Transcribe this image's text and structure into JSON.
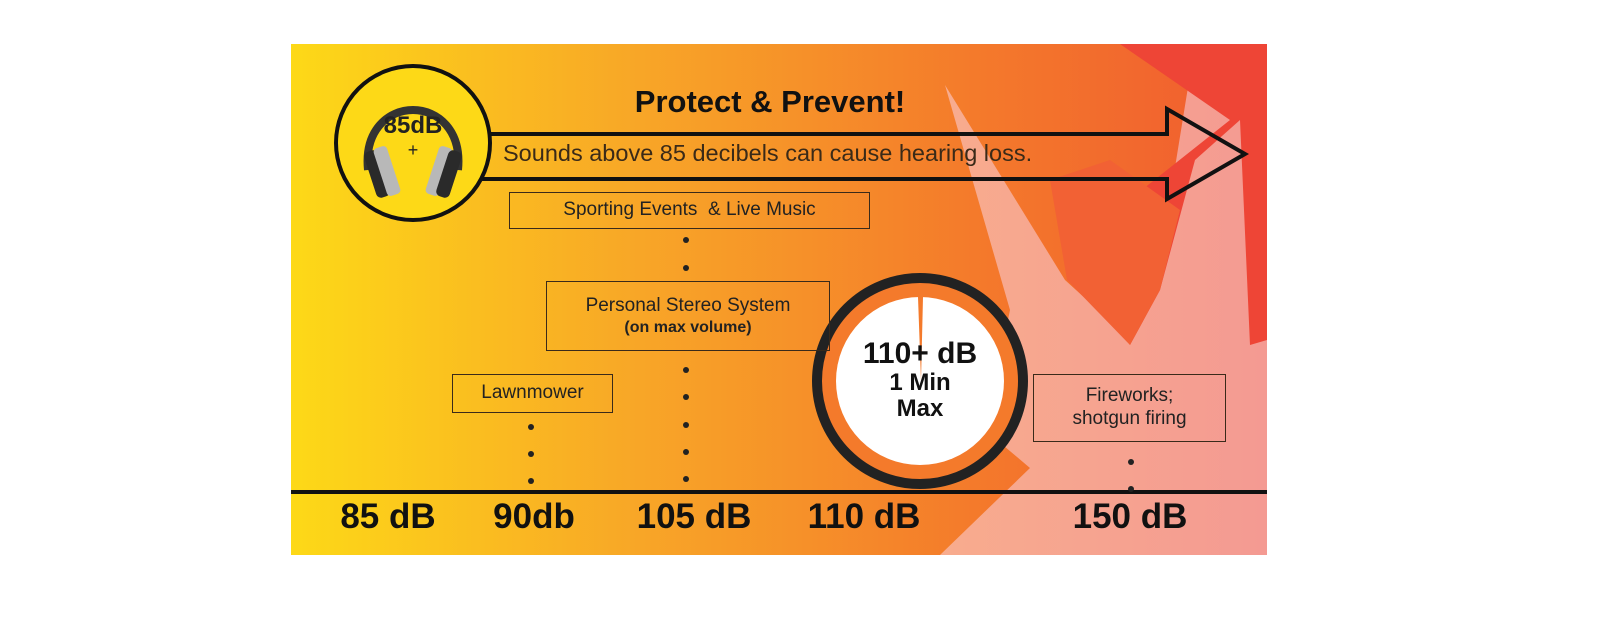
{
  "title": "Protect & Prevent!",
  "subtitle": "Sounds above 85 decibels can cause hearing loss.",
  "badge": {
    "line1": "85dB",
    "line2": "+",
    "icon": "headphones-icon"
  },
  "sources": [
    {
      "label": "Sporting Events  & Live Music"
    },
    {
      "label": "Personal Stereo System",
      "sub": "(on max volume)"
    },
    {
      "label": "Lawnmower"
    },
    {
      "label": "Fireworks;",
      "label2": "shotgun firing"
    }
  ],
  "clock": {
    "line1": "110+ dB",
    "line2": "1 Min",
    "line3": "Max",
    "icon": "clock-icon"
  },
  "scale": [
    "85 dB",
    "90db",
    "105 dB",
    "110 dB",
    "150 dB"
  ],
  "colors": {
    "yellow": "#fdd917",
    "orange": "#f47a2b",
    "salmon": "#f8a78b",
    "red": "#ee4536"
  }
}
